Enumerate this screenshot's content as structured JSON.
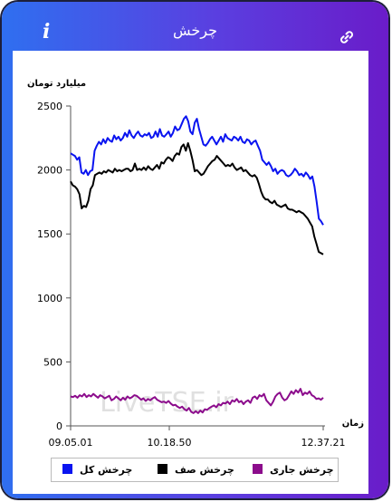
{
  "app": {
    "title": "چرخش"
  },
  "icons": {
    "info": "info-icon",
    "link": "link-icon",
    "info_glyph": "i"
  },
  "watermark": "LiveTSE.ir",
  "chart_data": {
    "type": "line",
    "ylabel": "میلیارد تومان",
    "xlabel": "زمان",
    "ylim": [
      0,
      2500
    ],
    "yticks": [
      "2500",
      "2000",
      "1500",
      "1000",
      "500",
      "0"
    ],
    "x_tick_labels": [
      "09.05.01",
      "10.18.50",
      "12.37.21"
    ],
    "legend_position": "bottom",
    "series": [
      {
        "name": "چرخش کل",
        "color": "#0a14f0",
        "values": [
          2130,
          2120,
          2110,
          2080,
          2100,
          1980,
          1970,
          2000,
          1960,
          1990,
          2000,
          2150,
          2190,
          2220,
          2200,
          2240,
          2210,
          2250,
          2230,
          2220,
          2270,
          2240,
          2260,
          2230,
          2250,
          2290,
          2260,
          2310,
          2270,
          2250,
          2280,
          2300,
          2270,
          2260,
          2280,
          2270,
          2290,
          2250,
          2260,
          2300,
          2260,
          2320,
          2270,
          2260,
          2280,
          2300,
          2260,
          2290,
          2340,
          2310,
          2320,
          2360,
          2400,
          2420,
          2380,
          2300,
          2280,
          2370,
          2400,
          2320,
          2260,
          2200,
          2190,
          2210,
          2240,
          2260,
          2230,
          2200,
          2230,
          2260,
          2220,
          2280,
          2250,
          2240,
          2230,
          2260,
          2250,
          2230,
          2260,
          2220,
          2210,
          2240,
          2230,
          2200,
          2220,
          2230,
          2190,
          2150,
          2080,
          2060,
          2040,
          2060,
          2030,
          1990,
          2010,
          1970,
          1990,
          2000,
          1990,
          1960,
          1950,
          1960,
          1980,
          2010,
          1990,
          1960,
          1970,
          1950,
          1980,
          1960,
          1930,
          1950,
          1870,
          1750,
          1620,
          1600,
          1570
        ],
        "x_time_fraction": []
      },
      {
        "name": "چرخش صف",
        "color": "#000000",
        "values": [
          1910,
          1880,
          1870,
          1850,
          1810,
          1700,
          1720,
          1710,
          1760,
          1850,
          1880,
          1960,
          1970,
          1980,
          1970,
          1990,
          1980,
          2000,
          1990,
          1980,
          2010,
          1990,
          2000,
          1990,
          2000,
          2010,
          2010,
          1990,
          2000,
          2050,
          2000,
          2010,
          2000,
          2020,
          2000,
          2030,
          2010,
          2000,
          2020,
          2040,
          2010,
          2060,
          2050,
          2080,
          2100,
          2090,
          2070,
          2110,
          2130,
          2120,
          2180,
          2200,
          2150,
          2210,
          2150,
          2080,
          1990,
          2000,
          1980,
          1960,
          1970,
          2000,
          2030,
          2050,
          2070,
          2080,
          2110,
          2090,
          2070,
          2050,
          2030,
          2040,
          2030,
          2050,
          2020,
          2000,
          2010,
          2020,
          1990,
          2000,
          1980,
          1960,
          1950,
          1960,
          1940,
          1890,
          1830,
          1790,
          1770,
          1770,
          1750,
          1740,
          1760,
          1730,
          1720,
          1710,
          1720,
          1730,
          1700,
          1690,
          1690,
          1680,
          1670,
          1680,
          1670,
          1660,
          1640,
          1620,
          1590,
          1560,
          1480,
          1420,
          1360,
          1350,
          1340
        ],
        "x_time_fraction": []
      },
      {
        "name": "چرخش جاری",
        "color": "#8c0c8c",
        "values": [
          230,
          225,
          235,
          220,
          240,
          230,
          250,
          225,
          240,
          230,
          250,
          235,
          220,
          240,
          230,
          215,
          225,
          235,
          200,
          210,
          230,
          215,
          200,
          220,
          205,
          230,
          215,
          225,
          240,
          235,
          220,
          205,
          215,
          195,
          210,
          200,
          215,
          225,
          205,
          195,
          185,
          190,
          180,
          195,
          175,
          160,
          165,
          150,
          140,
          150,
          130,
          120,
          140,
          110,
          100,
          115,
          100,
          120,
          105,
          130,
          125,
          140,
          150,
          160,
          145,
          170,
          160,
          180,
          175,
          190,
          170,
          200,
          190,
          210,
          185,
          195,
          170,
          190,
          200,
          180,
          220,
          230,
          210,
          240,
          230,
          250,
          200,
          180,
          160,
          190,
          230,
          250,
          260,
          220,
          200,
          210,
          240,
          270,
          250,
          280,
          260,
          290,
          240,
          260,
          250,
          270,
          240,
          230,
          210,
          215,
          205,
          220
        ],
        "x_time_fraction": []
      }
    ]
  }
}
